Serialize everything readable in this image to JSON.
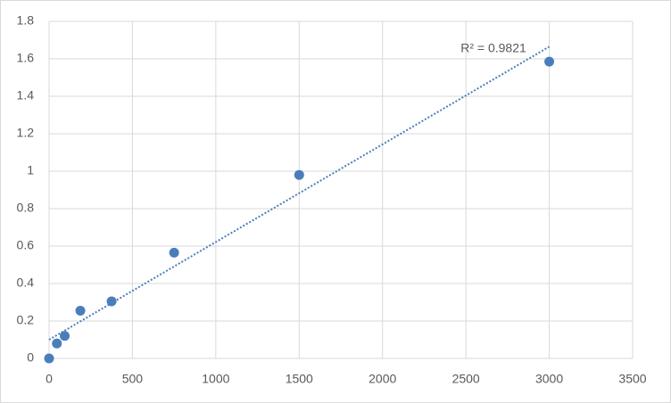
{
  "chart_data": {
    "type": "scatter",
    "x": [
      0,
      46.875,
      93.75,
      187.5,
      375,
      750,
      1500,
      3000
    ],
    "series": [
      {
        "color": "#4a7ebb",
        "values": [
          0,
          0.08,
          0.12,
          0.255,
          0.305,
          0.565,
          0.98,
          1.585
        ]
      }
    ],
    "trendline": {
      "x": [
        0,
        3000
      ],
      "values": [
        0.1,
        1.665
      ],
      "color": "#4a7ebb"
    },
    "annotation": "R² = 0.9821",
    "xlim": [
      0,
      3500
    ],
    "xticks": [
      0,
      500,
      1000,
      1500,
      2000,
      2500,
      3000,
      3500
    ],
    "ylim": [
      0,
      1.8
    ],
    "yticks": [
      0,
      0.2,
      0.4,
      0.6,
      0.8,
      1,
      1.2,
      1.4,
      1.6,
      1.8
    ],
    "grid": true
  }
}
